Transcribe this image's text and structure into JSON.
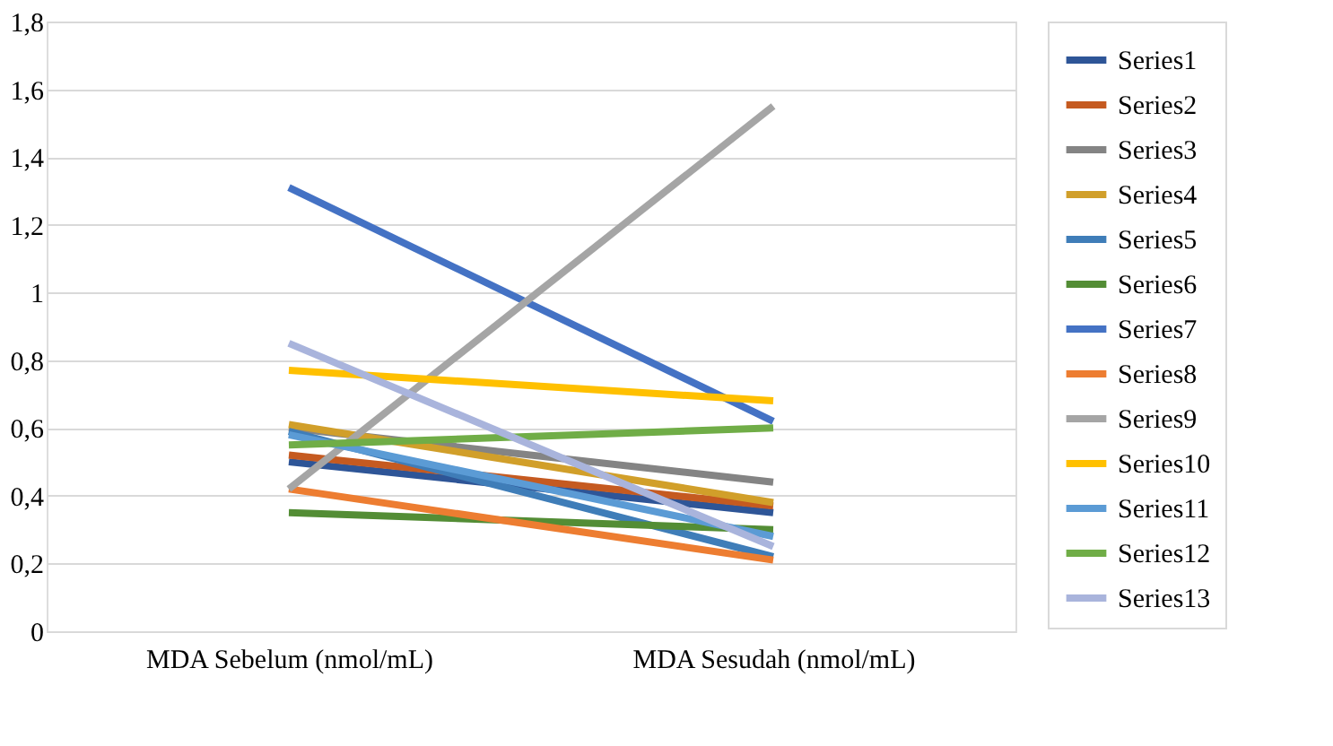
{
  "chart_data": {
    "type": "line",
    "categories": [
      "MDA Sebelum (nmol/mL)",
      "MDA Sesudah (nmol/mL)"
    ],
    "series": [
      {
        "name": "Series1",
        "color": "#2e5597",
        "values": [
          0.5,
          0.35
        ]
      },
      {
        "name": "Series2",
        "color": "#c55a20",
        "values": [
          0.52,
          0.37
        ]
      },
      {
        "name": "Series3",
        "color": "#848484",
        "values": [
          0.6,
          0.44
        ]
      },
      {
        "name": "Series4",
        "color": "#d19f2a",
        "values": [
          0.61,
          0.38
        ]
      },
      {
        "name": "Series5",
        "color": "#3f7db8",
        "values": [
          0.59,
          0.22
        ]
      },
      {
        "name": "Series6",
        "color": "#538d35",
        "values": [
          0.35,
          0.3
        ]
      },
      {
        "name": "Series7",
        "color": "#4472c4",
        "values": [
          1.31,
          0.62
        ]
      },
      {
        "name": "Series8",
        "color": "#ed7d31",
        "values": [
          0.42,
          0.21
        ]
      },
      {
        "name": "Series9",
        "color": "#a5a5a5",
        "values": [
          0.42,
          1.55
        ]
      },
      {
        "name": "Series10",
        "color": "#ffc000",
        "values": [
          0.77,
          0.68
        ]
      },
      {
        "name": "Series11",
        "color": "#5b9bd5",
        "values": [
          0.58,
          0.28
        ]
      },
      {
        "name": "Series12",
        "color": "#70ad47",
        "values": [
          0.55,
          0.6
        ]
      },
      {
        "name": "Series13",
        "color": "#a9b4dc",
        "values": [
          0.85,
          0.25
        ]
      }
    ],
    "ylim": [
      0,
      1.8
    ],
    "yticks": [
      0,
      {
        "value": 0.2,
        "label": "0,2"
      },
      {
        "value": 0.4,
        "label": "0,4"
      },
      {
        "value": 0.6,
        "label": "0,6"
      },
      {
        "value": 0.8,
        "label": "0,8"
      },
      1,
      {
        "value": 1.2,
        "label": "1,2"
      },
      {
        "value": 1.4,
        "label": "1,4"
      },
      {
        "value": 1.6,
        "label": "1,6"
      },
      {
        "value": 1.8,
        "label": "1,8"
      }
    ],
    "grid": "y",
    "legend": "right",
    "marker": "none",
    "line_style": "solid"
  }
}
